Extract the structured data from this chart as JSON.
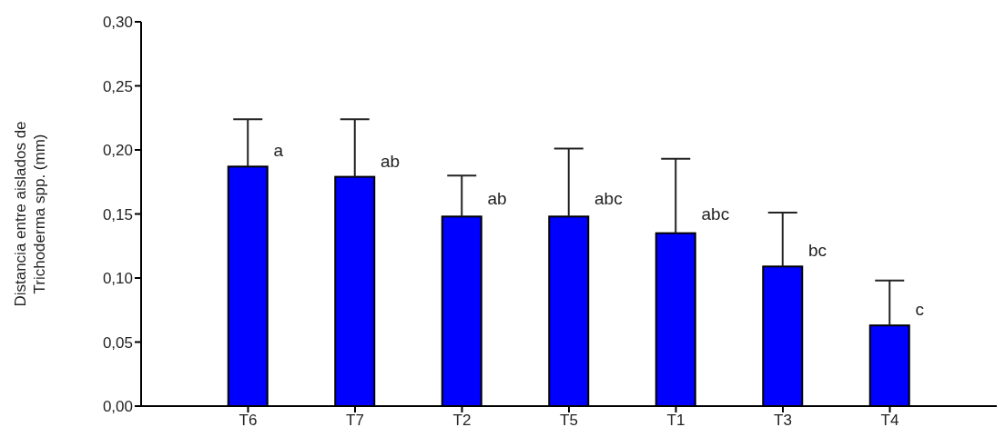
{
  "chart_data": {
    "type": "bar",
    "ylabel": "Distancia entre aislados de Trichoderma spp. (mm)",
    "categories": [
      "T6",
      "T7",
      "T2",
      "T5",
      "T1",
      "T3",
      "T4"
    ],
    "values": [
      0.187,
      0.179,
      0.148,
      0.148,
      0.135,
      0.109,
      0.063
    ],
    "errors": [
      [
        0.187,
        0.224
      ],
      [
        0.179,
        0.224
      ],
      [
        0.148,
        0.18
      ],
      [
        0.148,
        0.201
      ],
      [
        0.135,
        0.193
      ],
      [
        0.109,
        0.151
      ],
      [
        0.063,
        0.098
      ]
    ],
    "color": "#0000ff",
    "ylim": [
      0,
      0.3
    ],
    "yticks": [
      {
        "value": 0,
        "label": "0,00"
      },
      {
        "value": 0.05,
        "label": "0,05"
      },
      {
        "value": 0.1,
        "label": "0,10"
      },
      {
        "value": 0.15,
        "label": "0,15"
      },
      {
        "value": 0.2,
        "label": "0,20"
      },
      {
        "value": 0.25,
        "label": "0,25"
      },
      {
        "value": 0.3,
        "label": "0,30"
      }
    ],
    "annotations": [
      {
        "text": "a",
        "x": "T6",
        "y": 0.2
      },
      {
        "text": "ab",
        "x": "T7",
        "y": 0.191
      },
      {
        "text": "ab",
        "x": "T2",
        "y": 0.162
      },
      {
        "text": "abc",
        "x": "T5",
        "y": 0.162
      },
      {
        "text": "abc",
        "x": "T1",
        "y": 0.15
      },
      {
        "text": "bc",
        "x": "T3",
        "y": 0.122
      },
      {
        "text": "c",
        "x": "T4",
        "y": 0.076
      }
    ],
    "grid": false,
    "legend": false
  }
}
